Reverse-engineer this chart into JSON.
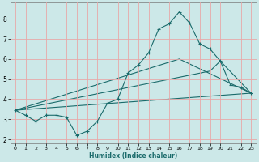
{
  "xlabel": "Humidex (Indice chaleur)",
  "bg_color": "#cce8e8",
  "grid_color": "#e8a8a8",
  "line_color": "#1a6b6b",
  "xlim": [
    -0.5,
    23.5
  ],
  "ylim": [
    1.8,
    8.8
  ],
  "xticks": [
    0,
    1,
    2,
    3,
    4,
    5,
    6,
    7,
    8,
    9,
    10,
    11,
    12,
    13,
    14,
    15,
    16,
    17,
    18,
    19,
    20,
    21,
    22,
    23
  ],
  "yticks": [
    2,
    3,
    4,
    5,
    6,
    7,
    8
  ],
  "line1_x": [
    0,
    1,
    2,
    3,
    4,
    5,
    6,
    7,
    8,
    9,
    10,
    11,
    12,
    13,
    14,
    15,
    16,
    17,
    18,
    19,
    20,
    21,
    22,
    23
  ],
  "line1_y": [
    3.45,
    3.2,
    2.9,
    3.2,
    3.2,
    3.1,
    2.2,
    2.4,
    2.9,
    3.8,
    4.0,
    5.3,
    5.7,
    6.3,
    7.5,
    7.75,
    8.35,
    7.8,
    6.75,
    6.5,
    5.9,
    4.7,
    4.6,
    4.3
  ],
  "line2_x": [
    0,
    23
  ],
  "line2_y": [
    3.45,
    4.3
  ],
  "line3_x": [
    0,
    16,
    23
  ],
  "line3_y": [
    3.45,
    6.0,
    4.3
  ],
  "line4_x": [
    0,
    19,
    20,
    23
  ],
  "line4_y": [
    3.45,
    5.4,
    5.9,
    4.3
  ]
}
